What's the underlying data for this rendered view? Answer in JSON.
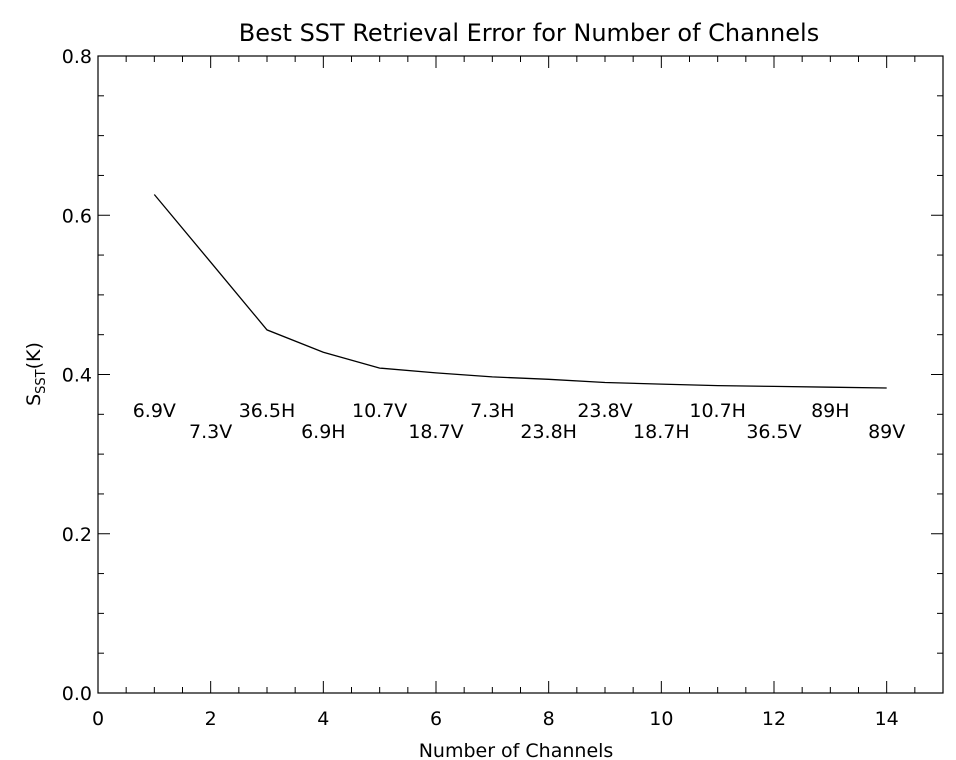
{
  "chart_data": {
    "type": "line",
    "title": "Best SST Retrieval Error for Number of Channels",
    "xlabel": "Number of Channels",
    "ylabel": {
      "main": "S",
      "subscript": "SST",
      "suffix": "(K)"
    },
    "xlim": [
      0,
      15
    ],
    "ylim": [
      0.0,
      0.8
    ],
    "xticks": [
      "0",
      "2",
      "4",
      "6",
      "8",
      "10",
      "12",
      "14"
    ],
    "yticks": [
      "0.0",
      "0.2",
      "0.4",
      "0.6",
      "0.8"
    ],
    "x": [
      1,
      2,
      3,
      4,
      5,
      6,
      7,
      8,
      9,
      10,
      11,
      12,
      13,
      14
    ],
    "y": [
      0.626,
      0.541,
      0.456,
      0.428,
      0.408,
      0.402,
      0.397,
      0.394,
      0.39,
      0.388,
      0.386,
      0.385,
      0.384,
      0.383
    ],
    "channel_labels": [
      "6.9V",
      "7.3V",
      "36.5H",
      "6.9H",
      "10.7V",
      "18.7V",
      "7.3H",
      "23.8H",
      "23.8V",
      "18.7H",
      "10.7H",
      "36.5V",
      "89H",
      "89V"
    ],
    "grid": false,
    "legend": "none"
  }
}
